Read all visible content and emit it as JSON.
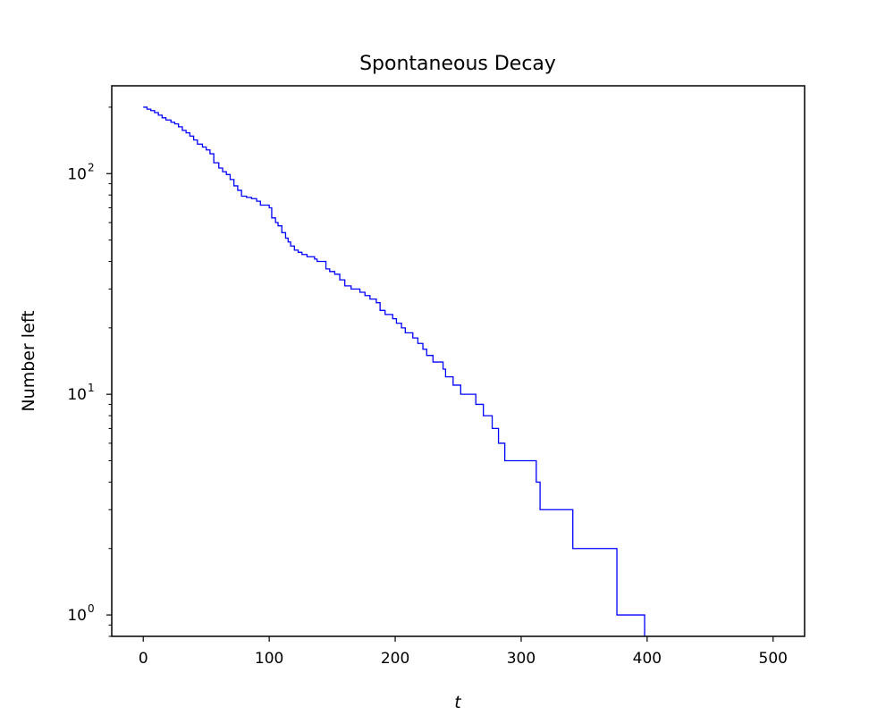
{
  "chart_data": {
    "type": "line",
    "title": "Spontaneous Decay",
    "xlabel": "t",
    "ylabel": "Number left",
    "xlim": [
      -25,
      525
    ],
    "ylim": [
      0.8,
      250
    ],
    "yscale": "log",
    "grid": false,
    "legend": "none",
    "x_ticks": [
      0,
      100,
      200,
      300,
      400,
      500
    ],
    "y_ticks": [
      1,
      10,
      100
    ],
    "y_tick_labels": [
      {
        "base": "10",
        "exp": "0"
      },
      {
        "base": "10",
        "exp": "1"
      },
      {
        "base": "10",
        "exp": "2"
      }
    ],
    "series": [
      {
        "line_style": "steps",
        "color": "#0000ff",
        "points": [
          [
            0,
            200
          ],
          [
            3,
            196
          ],
          [
            6,
            193
          ],
          [
            9,
            189
          ],
          [
            12,
            184
          ],
          [
            15,
            179
          ],
          [
            18,
            175
          ],
          [
            22,
            171
          ],
          [
            25,
            168
          ],
          [
            28,
            163
          ],
          [
            31,
            157
          ],
          [
            34,
            153
          ],
          [
            37,
            148
          ],
          [
            40,
            142
          ],
          [
            43,
            136
          ],
          [
            47,
            132
          ],
          [
            50,
            128
          ],
          [
            53,
            123
          ],
          [
            56,
            112
          ],
          [
            60,
            106
          ],
          [
            63,
            102
          ],
          [
            66,
            99
          ],
          [
            69,
            94
          ],
          [
            72,
            88
          ],
          [
            75,
            84
          ],
          [
            78,
            79
          ],
          [
            82,
            78
          ],
          [
            86,
            77
          ],
          [
            90,
            75
          ],
          [
            93,
            72
          ],
          [
            100,
            70
          ],
          [
            102,
            63
          ],
          [
            105,
            60
          ],
          [
            107,
            58
          ],
          [
            110,
            54
          ],
          [
            113,
            51
          ],
          [
            115,
            49
          ],
          [
            117,
            47
          ],
          [
            120,
            45
          ],
          [
            123,
            44
          ],
          [
            126,
            43
          ],
          [
            130,
            42
          ],
          [
            136,
            41
          ],
          [
            138,
            40
          ],
          [
            145,
            37
          ],
          [
            148,
            36
          ],
          [
            152,
            35
          ],
          [
            156,
            33
          ],
          [
            160,
            31
          ],
          [
            165,
            30
          ],
          [
            172,
            29
          ],
          [
            176,
            28
          ],
          [
            180,
            27
          ],
          [
            185,
            26
          ],
          [
            188,
            24
          ],
          [
            192,
            23
          ],
          [
            198,
            22
          ],
          [
            201,
            21
          ],
          [
            205,
            20
          ],
          [
            208,
            19
          ],
          [
            214,
            18
          ],
          [
            218,
            17
          ],
          [
            222,
            16
          ],
          [
            225,
            15
          ],
          [
            230,
            14
          ],
          [
            238,
            13
          ],
          [
            240,
            12
          ],
          [
            246,
            11
          ],
          [
            252,
            10
          ],
          [
            264,
            9
          ],
          [
            270,
            8
          ],
          [
            277,
            7
          ],
          [
            282,
            6
          ],
          [
            287,
            5
          ],
          [
            312,
            4
          ],
          [
            314,
            4
          ],
          [
            315,
            3
          ],
          [
            331,
            3
          ],
          [
            341,
            2
          ],
          [
            344,
            2
          ],
          [
            376,
            1
          ],
          [
            398,
            0.5
          ]
        ]
      }
    ]
  }
}
